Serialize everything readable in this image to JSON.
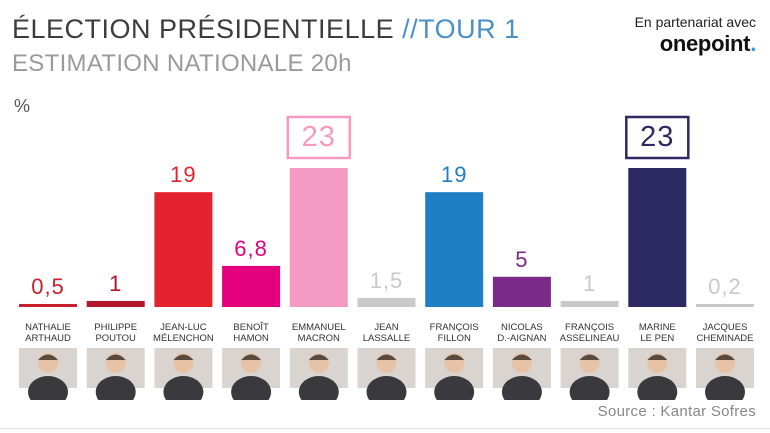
{
  "header": {
    "title_main": "ÉLECTION PRÉSIDENTIELLE",
    "title_tour": "//TOUR 1",
    "subtitle": "ESTIMATION NATIONALE 20h",
    "partner_text": "En partenariat avec",
    "partner_logo": "onepoint",
    "partner_logo_dot": "."
  },
  "footer": {
    "source": "Source : Kantar Sofres"
  },
  "chart_data": {
    "type": "bar",
    "ylabel": "%",
    "ylim": [
      0,
      23
    ],
    "categories": [
      "NATHALIE ARTHAUD",
      "PHILIPPE POUTOU",
      "JEAN-LUC MÉLENCHON",
      "BENOÎT HAMON",
      "EMMANUEL MACRON",
      "JEAN LASSALLE",
      "FRANÇOIS FILLON",
      "NICOLAS D.-AIGNAN",
      "FRANÇOIS ASSELINEAU",
      "MARINE LE PEN",
      "JACQUES CHEMINADE"
    ],
    "name_lines": [
      [
        "NATHALIE",
        "ARTHAUD"
      ],
      [
        "PHILIPPE",
        "POUTOU"
      ],
      [
        "JEAN-LUC",
        "MÉLENCHON"
      ],
      [
        "BENOÎT",
        "HAMON"
      ],
      [
        "EMMANUEL",
        "MACRON"
      ],
      [
        "JEAN",
        "LASSALLE"
      ],
      [
        "FRANÇOIS",
        "FILLON"
      ],
      [
        "NICOLAS",
        "D.-AIGNAN"
      ],
      [
        "FRANÇOIS",
        "ASSELINEAU"
      ],
      [
        "MARINE",
        "LE PEN"
      ],
      [
        "JACQUES",
        "CHEMINADE"
      ]
    ],
    "values": [
      0.5,
      1,
      19,
      6.8,
      23,
      1.5,
      19,
      5,
      1,
      23,
      0.2
    ],
    "value_labels": [
      "0,5",
      "1",
      "19",
      "6,8",
      "23",
      "1,5",
      "19",
      "5",
      "1",
      "23",
      "0,2"
    ],
    "colors": [
      "#c8202e",
      "#b3162b",
      "#e2232e",
      "#e4007c",
      "#f59ac3",
      "#c9c9c9",
      "#1f7fc4",
      "#7a2b88",
      "#c9c9c9",
      "#2d2a63",
      "#c9c9c9"
    ],
    "boxed_labels": [
      4,
      9
    ],
    "grid": false,
    "legend": "none"
  }
}
